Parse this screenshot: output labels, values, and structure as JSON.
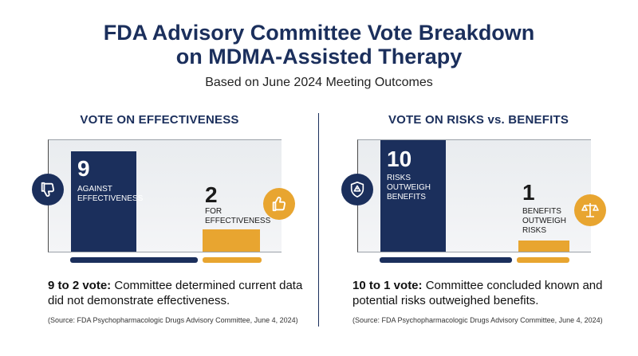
{
  "header": {
    "title_line1": "FDA Advisory Committee Vote Breakdown",
    "title_line2": "on MDMA-Assisted Therapy",
    "subtitle": "Based on June 2024 Meeting Outcomes"
  },
  "colors": {
    "navy": "#1b2f5c",
    "gold": "#e8a530"
  },
  "chart_data": [
    {
      "type": "bar",
      "title": "VOTE ON EFFECTIVENESS",
      "categories": [
        "AGAINST EFFECTIVENESS",
        "FOR EFFECTIVENESS"
      ],
      "values": [
        9,
        2
      ],
      "value_labels": [
        "9",
        "2"
      ],
      "label_lines": [
        [
          "AGAINST",
          "EFFECTIVENESS"
        ],
        [
          "FOR",
          "EFFECTIVENESS"
        ]
      ],
      "icons": [
        "thumbs-down-icon",
        "thumbs-up-icon"
      ],
      "summary_bold": "9 to 2 vote:",
      "summary_text": " Committee determined current data did not demonstrate effectiveness.",
      "source": "(Source: FDA Psychopharmacologic Drugs Advisory Committee, June 4, 2024)"
    },
    {
      "type": "bar",
      "title": "VOTE ON RISKS vs. BENEFITS",
      "categories": [
        "RISKS OUTWEIGH BENEFITS",
        "BENEFITS OUTWEIGH RISKS"
      ],
      "values": [
        10,
        1
      ],
      "value_labels": [
        "10",
        "1"
      ],
      "label_lines": [
        [
          "RISKS",
          "OUTWEIGH",
          "BENEFITS"
        ],
        [
          "BENEFITS",
          "OUTWEIGH",
          "RISKS"
        ]
      ],
      "icons": [
        "warning-shield-icon",
        "scales-icon"
      ],
      "summary_bold": "10 to 1 vote:",
      "summary_text": " Committee concluded known and potential risks outweighed benefits.",
      "source": "(Source: FDA Psychopharmacologic Drugs Advisory Committee, June 4, 2024)"
    }
  ]
}
